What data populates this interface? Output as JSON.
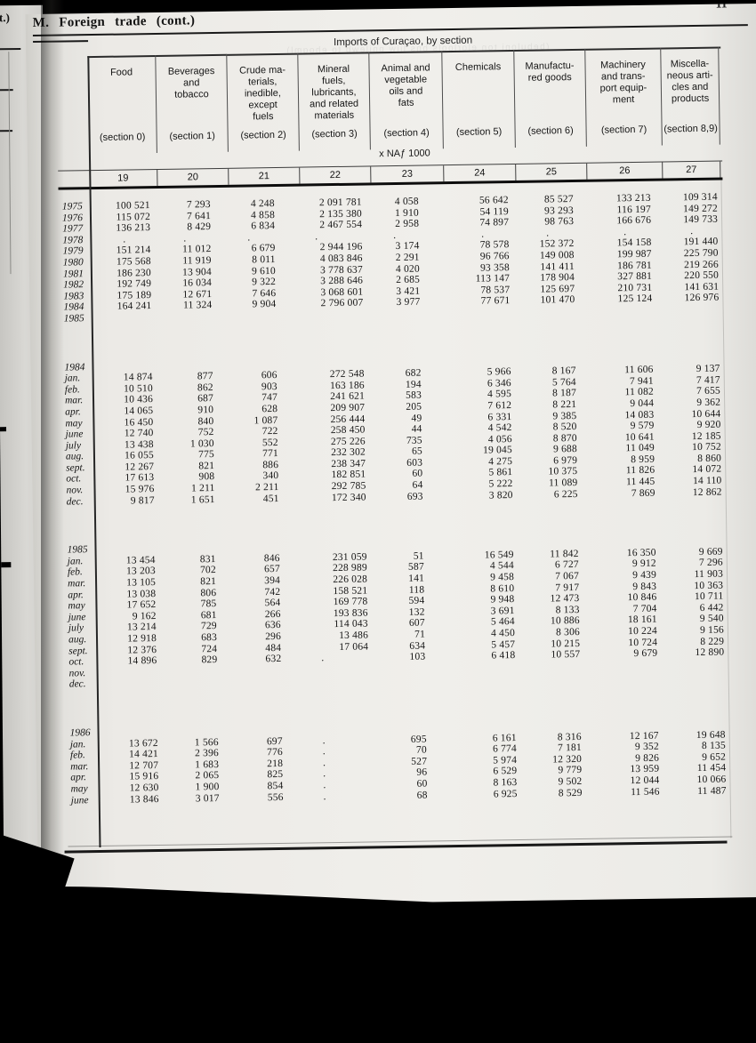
{
  "page": {
    "section_title": "M.  Foreign trade  (cont.)",
    "page_number": "11",
    "facing_page_edge_text": "t.)",
    "bleed_text": "(bebuloni ton elorlools bns liiw pnilewb to ehoqml)",
    "paper_color": "#efeeea",
    "ink_color": "#141414"
  },
  "table": {
    "title": "Imports of Curaçao, by section",
    "unit_label": "x NAƒ 1000",
    "columns": [
      {
        "name_lines": [
          "Food"
        ],
        "section": "(section 0)",
        "number": "19"
      },
      {
        "name_lines": [
          "Beverages",
          "and",
          "tobacco"
        ],
        "section": "(section 1)",
        "number": "20"
      },
      {
        "name_lines": [
          "Crude ma-",
          "terials,",
          "inedible,",
          "except",
          "fuels"
        ],
        "section": "(section 2)",
        "number": "21"
      },
      {
        "name_lines": [
          "Mineral",
          "fuels,",
          "lubricants,",
          "and related",
          "materials"
        ],
        "section": "(section 3)",
        "number": "22"
      },
      {
        "name_lines": [
          "Animal and",
          "vegetable",
          "oils and",
          "fats"
        ],
        "section": "(section 4)",
        "number": "23"
      },
      {
        "name_lines": [
          "Chemicals"
        ],
        "section": "(section 5)",
        "number": "24"
      },
      {
        "name_lines": [
          "Manufactu-",
          "red goods"
        ],
        "section": "(section 6)",
        "number": "25"
      },
      {
        "name_lines": [
          "Machinery",
          "and trans-",
          "port equip-",
          "ment"
        ],
        "section": "(section 7)",
        "number": "26"
      },
      {
        "name_lines": [
          "Miscella-",
          "neous arti-",
          "cles and",
          "products"
        ],
        "section": "(section 8,9)",
        "number": "27"
      }
    ],
    "blocks": [
      {
        "label": "",
        "rows": [
          {
            "stub": "1975",
            "cells": [
              "100 521",
              "7 293",
              "4 248",
              "2 091 781",
              "4 058",
              "56 642",
              "85 527",
              "133 213",
              "109 314"
            ]
          },
          {
            "stub": "1976",
            "cells": [
              "115 072",
              "7 641",
              "4 858",
              "2 135 380",
              "1 910",
              "54 119",
              "93 293",
              "116 197",
              "149 272"
            ]
          },
          {
            "stub": "1977",
            "cells": [
              "136 213",
              "8 429",
              "6 834",
              "2 467 554",
              "2 958",
              "74 897",
              "98 763",
              "166 676",
              "149 733"
            ]
          },
          {
            "stub": "1978",
            "cells": [
              ".",
              ".",
              ".",
              ".",
              ".",
              ".",
              ".",
              ".",
              "."
            ]
          },
          {
            "stub": "1979",
            "cells": [
              "151 214",
              "11 012",
              "6 679",
              "2 944 196",
              "3 174",
              "78 578",
              "152 372",
              "154 158",
              "191 440"
            ]
          },
          {
            "stub": "1980",
            "cells": [
              "175 568",
              "11 919",
              "8 011",
              "4 083 846",
              "2 291",
              "96 766",
              "149 008",
              "199 987",
              "225 790"
            ]
          },
          {
            "stub": "1981",
            "cells": [
              "186 230",
              "13 904",
              "9 610",
              "3 778 637",
              "4 020",
              "93 358",
              "141 411",
              "186 781",
              "219 266"
            ]
          },
          {
            "stub": "1982",
            "cells": [
              "192 749",
              "16 034",
              "9 322",
              "3 288 646",
              "2 685",
              "113 147",
              "178 904",
              "327 881",
              "220 550"
            ]
          },
          {
            "stub": "1983",
            "cells": [
              "175 189",
              "12 671",
              "7 646",
              "3 068 601",
              "3 421",
              "78 537",
              "125 697",
              "210 731",
              "141 631"
            ]
          },
          {
            "stub": "1984",
            "cells": [
              "164 241",
              "11 324",
              "9 904",
              "2 796 007",
              "3 977",
              "77 671",
              "101 470",
              "125 124",
              "126 976"
            ]
          },
          {
            "stub": "1985",
            "cells": [
              "",
              "",
              "",
              "",
              "",
              "",
              "",
              "",
              ""
            ]
          }
        ]
      },
      {
        "label": "1984",
        "rows": [
          {
            "stub": "jan.",
            "cells": [
              "14 874",
              "877",
              "606",
              "272 548",
              "682",
              "5 966",
              "8 167",
              "11 606",
              "9 137"
            ]
          },
          {
            "stub": "feb.",
            "cells": [
              "10 510",
              "862",
              "903",
              "163 186",
              "194",
              "6 346",
              "5 764",
              "7 941",
              "7 417"
            ]
          },
          {
            "stub": "mar.",
            "cells": [
              "10 436",
              "687",
              "747",
              "241 621",
              "583",
              "4 595",
              "8 187",
              "11 082",
              "7 655"
            ]
          },
          {
            "stub": "apr.",
            "cells": [
              "14 065",
              "910",
              "628",
              "209 907",
              "205",
              "7 612",
              "8 221",
              "9 044",
              "9 362"
            ]
          },
          {
            "stub": "may",
            "cells": [
              "16 450",
              "840",
              "1 087",
              "256 444",
              "49",
              "6 331",
              "9 385",
              "14 083",
              "10 644"
            ]
          },
          {
            "stub": "june",
            "cells": [
              "12 740",
              "752",
              "722",
              "258 450",
              "44",
              "4 542",
              "8 520",
              "9 579",
              "9 920"
            ]
          },
          {
            "stub": "july",
            "cells": [
              "13 438",
              "1 030",
              "552",
              "275 226",
              "735",
              "4 056",
              "8 870",
              "10 641",
              "12 185"
            ]
          },
          {
            "stub": "aug.",
            "cells": [
              "16 055",
              "775",
              "771",
              "232 302",
              "65",
              "19 045",
              "9 688",
              "11 049",
              "10 752"
            ]
          },
          {
            "stub": "sept.",
            "cells": [
              "12 267",
              "821",
              "886",
              "238 347",
              "603",
              "4 275",
              "6 979",
              "8 959",
              "8 860"
            ]
          },
          {
            "stub": "oct.",
            "cells": [
              "17 613",
              "908",
              "340",
              "182 851",
              "60",
              "5 861",
              "10 375",
              "11 826",
              "14 072"
            ]
          },
          {
            "stub": "nov.",
            "cells": [
              "15 976",
              "1 211",
              "2 211",
              "292 785",
              "64",
              "5 222",
              "11 089",
              "11 445",
              "14 110"
            ]
          },
          {
            "stub": "dec.",
            "cells": [
              "9 817",
              "1 651",
              "451",
              "172 340",
              "693",
              "3 820",
              "6 225",
              "7 869",
              "12 862"
            ]
          }
        ]
      },
      {
        "label": "1985",
        "rows": [
          {
            "stub": "jan.",
            "cells": [
              "13 454",
              "831",
              "846",
              "231 059",
              "51",
              "16 549",
              "11 842",
              "16 350",
              "9 669"
            ]
          },
          {
            "stub": "feb.",
            "cells": [
              "13 203",
              "702",
              "657",
              "228 989",
              "587",
              "4 544",
              "6 727",
              "9 912",
              "7 296"
            ]
          },
          {
            "stub": "mar.",
            "cells": [
              "13 105",
              "821",
              "394",
              "226 028",
              "141",
              "9 458",
              "7 067",
              "9 439",
              "11 903"
            ]
          },
          {
            "stub": "apr.",
            "cells": [
              "13 038",
              "806",
              "742",
              "158 521",
              "118",
              "8 610",
              "7 917",
              "9 843",
              "10 363"
            ]
          },
          {
            "stub": "may",
            "cells": [
              "17 652",
              "785",
              "564",
              "169 778",
              "594",
              "9 948",
              "12 473",
              "10 846",
              "10 711"
            ]
          },
          {
            "stub": "june",
            "cells": [
              "9 162",
              "681",
              "266",
              "193 836",
              "132",
              "3 691",
              "8 133",
              "7 704",
              "6 442"
            ]
          },
          {
            "stub": "july",
            "cells": [
              "13 214",
              "729",
              "636",
              "114 043",
              "607",
              "5 464",
              "10 886",
              "18 161",
              "9 540"
            ]
          },
          {
            "stub": "aug.",
            "cells": [
              "12 918",
              "683",
              "296",
              "13 486",
              "71",
              "4 450",
              "8 306",
              "10 224",
              "9 156"
            ]
          },
          {
            "stub": "sept.",
            "cells": [
              "12 376",
              "724",
              "484",
              "17 064",
              "634",
              "5 457",
              "10 215",
              "10 724",
              "8 229"
            ]
          },
          {
            "stub": "oct.",
            "cells": [
              "14 896",
              "829",
              "632",
              ".",
              "103",
              "6 418",
              "10 557",
              "9 679",
              "12 890"
            ]
          },
          {
            "stub": "nov.",
            "cells": [
              "",
              "",
              "",
              "",
              "",
              "",
              "",
              "",
              ""
            ]
          },
          {
            "stub": "dec.",
            "cells": [
              "",
              "",
              "",
              "",
              "",
              "",
              "",
              "",
              ""
            ]
          }
        ]
      },
      {
        "label": "1986",
        "rows": [
          {
            "stub": "jan.",
            "cells": [
              "13 672",
              "1 566",
              "697",
              ".",
              "695",
              "6 161",
              "8 316",
              "12 167",
              "19 648"
            ]
          },
          {
            "stub": "feb.",
            "cells": [
              "14 421",
              "2 396",
              "776",
              ".",
              "70",
              "6 774",
              "7 181",
              "9 352",
              "8 135"
            ]
          },
          {
            "stub": "mar.",
            "cells": [
              "12 707",
              "1 683",
              "218",
              ".",
              "527",
              "5 974",
              "12 320",
              "9 826",
              "9 652"
            ]
          },
          {
            "stub": "apr.",
            "cells": [
              "15 916",
              "2 065",
              "825",
              ".",
              "96",
              "6 529",
              "9 779",
              "13 959",
              "11 454"
            ]
          },
          {
            "stub": "may",
            "cells": [
              "12 630",
              "1 900",
              "854",
              ".",
              "60",
              "8 163",
              "9 502",
              "12 044",
              "10 066"
            ]
          },
          {
            "stub": "june",
            "cells": [
              "13 846",
              "3 017",
              "556",
              ".",
              "68",
              "6 925",
              "8 529",
              "11 546",
              "11 487"
            ]
          }
        ]
      }
    ]
  }
}
